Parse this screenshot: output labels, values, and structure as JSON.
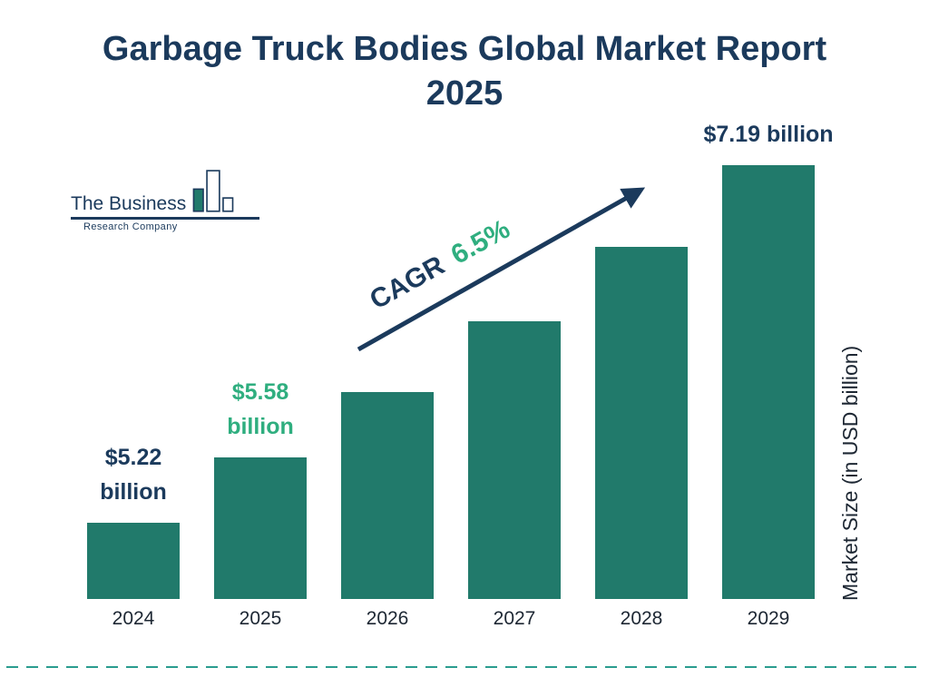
{
  "title": {
    "line1": "Garbage Truck Bodies Global Market Report",
    "line2": "2025"
  },
  "logo": {
    "line1": "The Business",
    "line2": "Research Company"
  },
  "cagr": {
    "prefix": "CAGR",
    "value": "6.5%"
  },
  "ylabel": "Market Size (in USD billion)",
  "colors": {
    "navy": "#1b3a5c",
    "teal": "#217a6b",
    "teal_light": "#2fae7f",
    "ink": "#1d2733",
    "divider": "#2a9d8f"
  },
  "chart_data": {
    "type": "bar",
    "title": "Garbage Truck Bodies Global Market Report 2025",
    "categories": [
      "2024",
      "2025",
      "2026",
      "2027",
      "2028",
      "2029"
    ],
    "values": [
      5.22,
      5.58,
      5.94,
      6.33,
      6.74,
      7.19
    ],
    "unit": "USD billion",
    "xlabel": "",
    "ylabel": "Market Size (in USD billion)",
    "ylim": [
      4.8,
      7.3
    ],
    "grid": false,
    "legend": false,
    "annotation": "CAGR 6.5%",
    "bar_labels": [
      {
        "lines": [
          "$5.22",
          "billion"
        ],
        "color": "navy"
      },
      {
        "lines": [
          "$5.58",
          "billion"
        ],
        "color": "teal"
      },
      null,
      null,
      null,
      {
        "lines": [
          "$7.19 billion"
        ],
        "color": "navy"
      }
    ]
  }
}
